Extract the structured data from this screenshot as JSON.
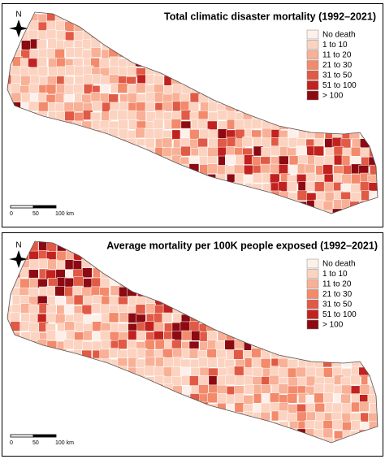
{
  "panels": [
    {
      "title": "Total climatic disaster mortality (1992–2021)",
      "north": "N",
      "scale": [
        "0",
        "50",
        "100 km"
      ],
      "legend": [
        {
          "label": "No death",
          "color": "#fdf0ea"
        },
        {
          "label": "1 to 10",
          "color": "#fcd3c1"
        },
        {
          "label": "11 to 20",
          "color": "#f8b196"
        },
        {
          "label": "21 to 30",
          "color": "#f28a6b"
        },
        {
          "label": "31 to 50",
          "color": "#e05a45"
        },
        {
          "label": "51 to 100",
          "color": "#c2221f"
        },
        {
          "label": "> 100",
          "color": "#8c0b12"
        }
      ]
    },
    {
      "title": "Average mortality per 100K people exposed (1992–2021)",
      "north": "N",
      "scale": [
        "0",
        "50",
        "100 km"
      ],
      "legend": [
        {
          "label": "No death",
          "color": "#fdf0ea"
        },
        {
          "label": "1 to 10",
          "color": "#fcd3c1"
        },
        {
          "label": "11 to 20",
          "color": "#f8b196"
        },
        {
          "label": "21 to 30",
          "color": "#f28a6b"
        },
        {
          "label": "31 to 50",
          "color": "#e05a45"
        },
        {
          "label": "51 to 100",
          "color": "#c2221f"
        },
        {
          "label": "> 100",
          "color": "#8c0b12"
        }
      ]
    }
  ]
}
